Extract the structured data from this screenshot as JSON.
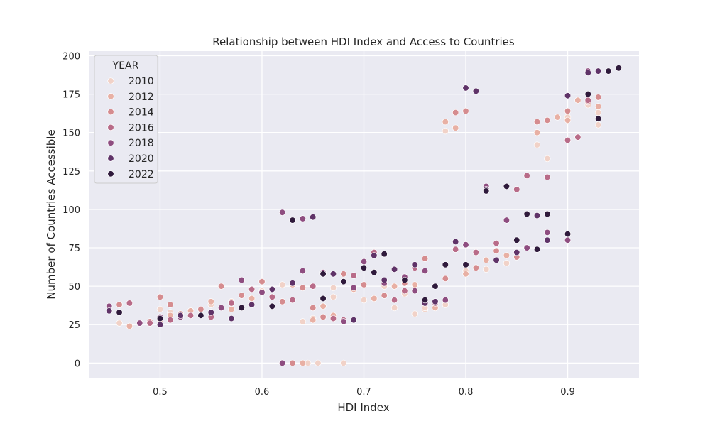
{
  "chart_data": {
    "type": "scatter",
    "title": "Relationship between HDI Index and Access to Countries",
    "xlabel": "HDI Index",
    "ylabel": "Number of Countries Accessible",
    "xlim": [
      0.43,
      0.97
    ],
    "ylim": [
      -10,
      203
    ],
    "xticks": [
      0.5,
      0.6,
      0.7,
      0.8,
      0.9
    ],
    "xtick_labels": [
      "0.5",
      "0.6",
      "0.7",
      "0.8",
      "0.9"
    ],
    "yticks": [
      0,
      25,
      50,
      75,
      100,
      125,
      150,
      175,
      200
    ],
    "ytick_labels": [
      "0",
      "25",
      "50",
      "75",
      "100",
      "125",
      "150",
      "175",
      "200"
    ],
    "grid": true,
    "legend": {
      "title": "YEAR",
      "placement": "top-left"
    },
    "series": [
      {
        "name": "2010",
        "color": "#f1d2c8",
        "x": [
          0.46,
          0.47,
          0.49,
          0.5,
          0.51,
          0.53,
          0.55,
          0.57,
          0.6,
          0.62,
          0.64,
          0.65,
          0.67,
          0.68,
          0.7,
          0.72,
          0.74,
          0.75,
          0.76,
          0.78,
          0.78,
          0.8,
          0.82,
          0.84,
          0.87,
          0.88,
          0.9,
          0.92,
          0.93,
          0.93,
          0.645,
          0.655,
          0.67,
          0.73,
          0.76
        ],
        "y": [
          26,
          24,
          26,
          35,
          33,
          34,
          38,
          40,
          47,
          51,
          27,
          29,
          49,
          0,
          41,
          50,
          45,
          32,
          35,
          151,
          38,
          60,
          61,
          65,
          142,
          133,
          160,
          168,
          155,
          163,
          0,
          0,
          43,
          36,
          36
        ]
      },
      {
        "name": "2012",
        "color": "#e8b0a4",
        "x": [
          0.47,
          0.48,
          0.5,
          0.51,
          0.53,
          0.55,
          0.57,
          0.59,
          0.61,
          0.63,
          0.65,
          0.67,
          0.69,
          0.71,
          0.73,
          0.75,
          0.77,
          0.78,
          0.79,
          0.8,
          0.82,
          0.84,
          0.86,
          0.87,
          0.89,
          0.9,
          0.91,
          0.93,
          0.64,
          0.66
        ],
        "y": [
          24,
          26,
          28,
          31,
          34,
          40,
          35,
          42,
          48,
          51,
          28,
          31,
          48,
          42,
          50,
          51,
          36,
          157,
          153,
          58,
          67,
          70,
          75,
          150,
          160,
          158,
          171,
          167,
          0,
          37
        ]
      },
      {
        "name": "2014",
        "color": "#d58c8f",
        "x": [
          0.46,
          0.49,
          0.5,
          0.51,
          0.52,
          0.54,
          0.56,
          0.58,
          0.6,
          0.62,
          0.64,
          0.66,
          0.68,
          0.7,
          0.72,
          0.74,
          0.76,
          0.78,
          0.79,
          0.8,
          0.81,
          0.83,
          0.85,
          0.87,
          0.88,
          0.9,
          0.92,
          0.93,
          0.63,
          0.65
        ],
        "y": [
          38,
          27,
          43,
          38,
          32,
          35,
          50,
          44,
          53,
          40,
          49,
          30,
          58,
          51,
          44,
          52,
          68,
          55,
          163,
          164,
          62,
          73,
          69,
          157,
          158,
          164,
          170,
          173,
          0,
          36
        ]
      },
      {
        "name": "2016",
        "color": "#b86b88",
        "x": [
          0.47,
          0.49,
          0.51,
          0.53,
          0.55,
          0.57,
          0.59,
          0.61,
          0.63,
          0.65,
          0.67,
          0.69,
          0.71,
          0.73,
          0.75,
          0.77,
          0.79,
          0.81,
          0.83,
          0.85,
          0.86,
          0.88,
          0.9,
          0.91,
          0.92,
          0.62,
          0.68,
          0.74
        ],
        "y": [
          39,
          26,
          28,
          31,
          30,
          39,
          48,
          43,
          41,
          50,
          29,
          57,
          72,
          41,
          62,
          39,
          74,
          72,
          78,
          113,
          122,
          121,
          145,
          147,
          171,
          0,
          28,
          47
        ]
      },
      {
        "name": "2018",
        "color": "#8e4d80",
        "x": [
          0.45,
          0.48,
          0.5,
          0.52,
          0.54,
          0.56,
          0.58,
          0.6,
          0.62,
          0.64,
          0.66,
          0.68,
          0.7,
          0.72,
          0.74,
          0.76,
          0.78,
          0.8,
          0.82,
          0.84,
          0.86,
          0.88,
          0.9,
          0.92,
          0.62,
          0.64,
          0.69,
          0.75
        ],
        "y": [
          37,
          26,
          30,
          30,
          31,
          36,
          54,
          46,
          98,
          60,
          59,
          27,
          66,
          52,
          56,
          60,
          41,
          77,
          115,
          93,
          75,
          85,
          80,
          190,
          0,
          94,
          49,
          47
        ]
      },
      {
        "name": "2020",
        "color": "#5f3368",
        "x": [
          0.45,
          0.5,
          0.52,
          0.55,
          0.57,
          0.59,
          0.61,
          0.63,
          0.65,
          0.67,
          0.69,
          0.71,
          0.73,
          0.75,
          0.77,
          0.79,
          0.8,
          0.81,
          0.82,
          0.83,
          0.85,
          0.87,
          0.88,
          0.9,
          0.92,
          0.93,
          0.72,
          0.76
        ],
        "y": [
          34,
          25,
          31,
          33,
          29,
          38,
          48,
          52,
          95,
          58,
          28,
          70,
          61,
          64,
          40,
          79,
          179,
          177,
          113,
          67,
          72,
          96,
          80,
          174,
          189,
          190,
          54,
          39
        ]
      },
      {
        "name": "2022",
        "color": "#2f1a3c",
        "x": [
          0.46,
          0.5,
          0.54,
          0.58,
          0.61,
          0.63,
          0.66,
          0.68,
          0.7,
          0.72,
          0.74,
          0.76,
          0.78,
          0.8,
          0.82,
          0.84,
          0.85,
          0.86,
          0.87,
          0.88,
          0.9,
          0.92,
          0.93,
          0.94,
          0.95,
          0.66,
          0.71,
          0.77
        ],
        "y": [
          33,
          29,
          31,
          36,
          37,
          93,
          58,
          53,
          62,
          71,
          54,
          41,
          64,
          64,
          112,
          115,
          80,
          97,
          74,
          97,
          84,
          175,
          159,
          190,
          192,
          42,
          59,
          50
        ]
      }
    ]
  }
}
